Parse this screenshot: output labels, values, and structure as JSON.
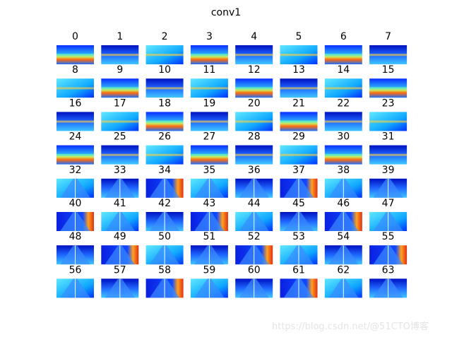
{
  "title": "conv1",
  "panels": [
    {
      "label": "0"
    },
    {
      "label": "1"
    },
    {
      "label": "2"
    },
    {
      "label": "3"
    },
    {
      "label": "4"
    },
    {
      "label": "5"
    },
    {
      "label": "6"
    },
    {
      "label": "7"
    },
    {
      "label": "8"
    },
    {
      "label": "9"
    },
    {
      "label": "10"
    },
    {
      "label": "11"
    },
    {
      "label": "12"
    },
    {
      "label": "13"
    },
    {
      "label": "14"
    },
    {
      "label": "15"
    },
    {
      "label": "16"
    },
    {
      "label": "17"
    },
    {
      "label": "18"
    },
    {
      "label": "19"
    },
    {
      "label": "20"
    },
    {
      "label": "21"
    },
    {
      "label": "22"
    },
    {
      "label": "23"
    },
    {
      "label": "24"
    },
    {
      "label": "25"
    },
    {
      "label": "26"
    },
    {
      "label": "27"
    },
    {
      "label": "28"
    },
    {
      "label": "29"
    },
    {
      "label": "30"
    },
    {
      "label": "31"
    },
    {
      "label": "32"
    },
    {
      "label": "33"
    },
    {
      "label": "34"
    },
    {
      "label": "35"
    },
    {
      "label": "36"
    },
    {
      "label": "37"
    },
    {
      "label": "38"
    },
    {
      "label": "39"
    },
    {
      "label": "40"
    },
    {
      "label": "41"
    },
    {
      "label": "42"
    },
    {
      "label": "43"
    },
    {
      "label": "44"
    },
    {
      "label": "45"
    },
    {
      "label": "46"
    },
    {
      "label": "47"
    },
    {
      "label": "48"
    },
    {
      "label": "49"
    },
    {
      "label": "50"
    },
    {
      "label": "51"
    },
    {
      "label": "52"
    },
    {
      "label": "53"
    },
    {
      "label": "54"
    },
    {
      "label": "55"
    },
    {
      "label": "56"
    },
    {
      "label": "57"
    },
    {
      "label": "58"
    },
    {
      "label": "59"
    },
    {
      "label": "60"
    },
    {
      "label": "61"
    },
    {
      "label": "62"
    },
    {
      "label": "63"
    }
  ],
  "watermark": "https://blog.csdn.net/@51CTO博客"
}
